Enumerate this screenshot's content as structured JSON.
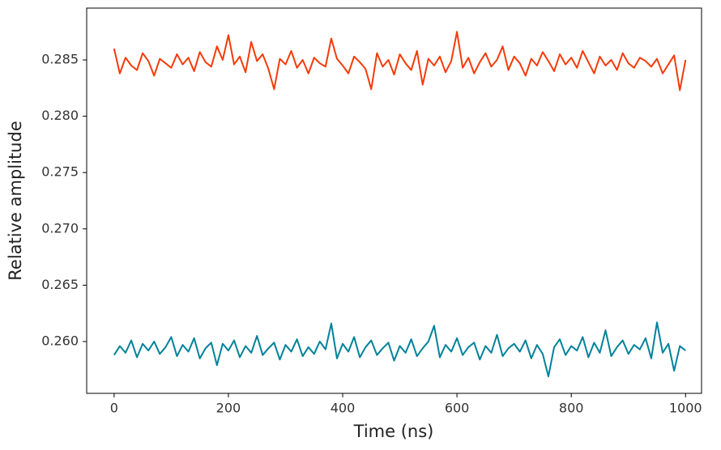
{
  "chart_data": {
    "type": "line",
    "xlabel": "Time (ns)",
    "ylabel": "Relative amplitude",
    "x": [
      0,
      10,
      20,
      30,
      40,
      50,
      60,
      70,
      80,
      90,
      100,
      110,
      120,
      130,
      140,
      150,
      160,
      170,
      180,
      190,
      200,
      210,
      220,
      230,
      240,
      250,
      260,
      270,
      280,
      290,
      300,
      310,
      320,
      330,
      340,
      350,
      360,
      370,
      380,
      390,
      400,
      410,
      420,
      430,
      440,
      450,
      460,
      470,
      480,
      490,
      500,
      510,
      520,
      530,
      540,
      550,
      560,
      570,
      580,
      590,
      600,
      610,
      620,
      630,
      640,
      650,
      660,
      670,
      680,
      690,
      700,
      710,
      720,
      730,
      740,
      750,
      760,
      770,
      780,
      790,
      800,
      810,
      820,
      830,
      840,
      850,
      860,
      870,
      880,
      890,
      900,
      910,
      920,
      930,
      940,
      950,
      960,
      970,
      980,
      990,
      1000
    ],
    "series": [
      {
        "color": "#f53a0a",
        "values": [
          0.286,
          0.2838,
          0.2852,
          0.2845,
          0.2841,
          0.2856,
          0.2849,
          0.2836,
          0.2851,
          0.2847,
          0.2843,
          0.2855,
          0.2846,
          0.2852,
          0.284,
          0.2857,
          0.2848,
          0.2844,
          0.2862,
          0.285,
          0.2872,
          0.2846,
          0.2853,
          0.2839,
          0.2866,
          0.2849,
          0.2855,
          0.2842,
          0.2824,
          0.2851,
          0.2846,
          0.2858,
          0.2843,
          0.285,
          0.2838,
          0.2852,
          0.2847,
          0.2844,
          0.2869,
          0.2851,
          0.2845,
          0.2838,
          0.2853,
          0.2848,
          0.2842,
          0.2824,
          0.2856,
          0.2844,
          0.285,
          0.2837,
          0.2855,
          0.2847,
          0.2841,
          0.2858,
          0.2828,
          0.2851,
          0.2845,
          0.2853,
          0.2839,
          0.2849,
          0.2875,
          0.2843,
          0.2852,
          0.2838,
          0.2848,
          0.2856,
          0.2844,
          0.285,
          0.2862,
          0.2841,
          0.2853,
          0.2847,
          0.2836,
          0.2851,
          0.2845,
          0.2857,
          0.2849,
          0.284,
          0.2855,
          0.2846,
          0.2852,
          0.2843,
          0.2858,
          0.2848,
          0.2838,
          0.2853,
          0.2845,
          0.285,
          0.2841,
          0.2856,
          0.2847,
          0.2843,
          0.2852,
          0.2849,
          0.2844,
          0.2851,
          0.2838,
          0.2846,
          0.2854,
          0.2823,
          0.285
        ]
      },
      {
        "color": "#00829a",
        "values": [
          0.2588,
          0.2596,
          0.259,
          0.2601,
          0.2586,
          0.2598,
          0.2592,
          0.26,
          0.2589,
          0.2595,
          0.2604,
          0.2587,
          0.2597,
          0.2591,
          0.2603,
          0.2585,
          0.2594,
          0.2599,
          0.2579,
          0.2598,
          0.2592,
          0.2601,
          0.2586,
          0.2596,
          0.259,
          0.2605,
          0.2588,
          0.2594,
          0.2599,
          0.2584,
          0.2597,
          0.2591,
          0.2602,
          0.2587,
          0.2595,
          0.2589,
          0.26,
          0.2593,
          0.2616,
          0.2585,
          0.2598,
          0.2591,
          0.2604,
          0.2586,
          0.2595,
          0.2601,
          0.2588,
          0.2594,
          0.2599,
          0.2583,
          0.2596,
          0.259,
          0.2602,
          0.2587,
          0.2594,
          0.26,
          0.2614,
          0.2586,
          0.2597,
          0.2591,
          0.2603,
          0.2588,
          0.2595,
          0.2599,
          0.2584,
          0.2596,
          0.259,
          0.2606,
          0.2587,
          0.2594,
          0.2598,
          0.2591,
          0.2601,
          0.2585,
          0.2597,
          0.2589,
          0.2569,
          0.2595,
          0.2602,
          0.2588,
          0.2596,
          0.2592,
          0.2604,
          0.2586,
          0.2599,
          0.259,
          0.261,
          0.2587,
          0.2595,
          0.2601,
          0.2589,
          0.2597,
          0.2593,
          0.2603,
          0.2585,
          0.2617,
          0.259,
          0.2598,
          0.2574,
          0.2596,
          0.2592
        ]
      }
    ],
    "xlim": [
      -48,
      1028
    ],
    "xticks": [
      0,
      200,
      400,
      600,
      800,
      1000
    ],
    "ylim": [
      0.2554,
      0.2896
    ],
    "yticks": [
      {
        "value": 0.26,
        "label": "0.260"
      },
      0.265,
      {
        "value": 0.27,
        "label": "0.270"
      },
      0.275,
      {
        "value": 0.28,
        "label": "0.280"
      },
      0.285
    ],
    "grid": false
  }
}
